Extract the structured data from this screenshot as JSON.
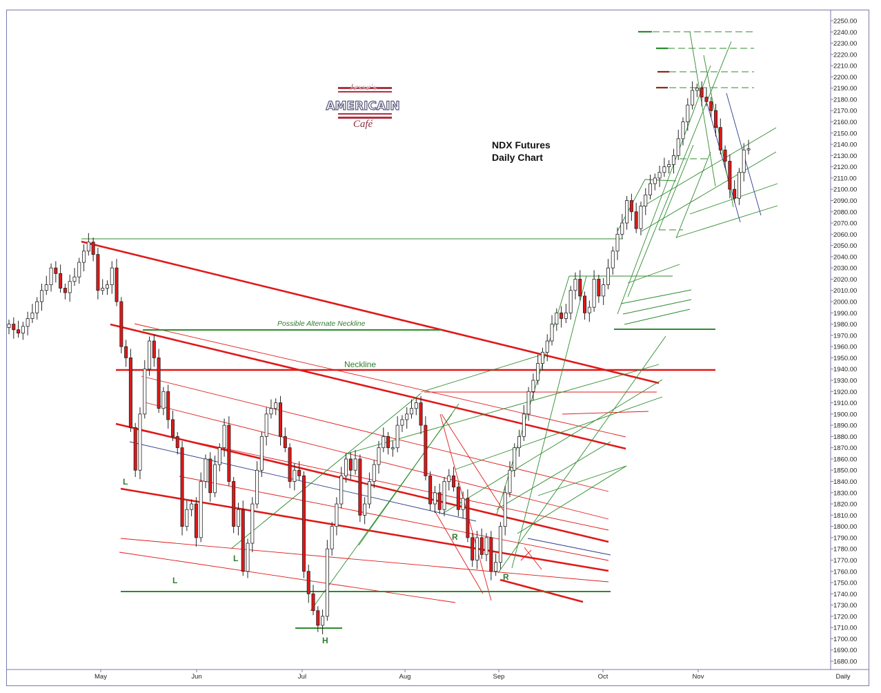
{
  "chart_data": {
    "type": "candlestick",
    "title": "NDX  Futures",
    "subtitle": "Daily Chart",
    "logo": {
      "line1": "Jesse's",
      "line2": "AMERICAIN",
      "line3": "Café"
    },
    "ylim": [
      1675,
      2255
    ],
    "y_ticks": [
      "2250.00",
      "2240.00",
      "2230.00",
      "2220.00",
      "2210.00",
      "2200.00",
      "2190.00",
      "2180.00",
      "2170.00",
      "2160.00",
      "2150.00",
      "2140.00",
      "2130.00",
      "2120.00",
      "2110.00",
      "2100.00",
      "2090.00",
      "2080.00",
      "2070.00",
      "2060.00",
      "2050.00",
      "2040.00",
      "2030.00",
      "2020.00",
      "2010.00",
      "2000.00",
      "1990.00",
      "1980.00",
      "1970.00",
      "1960.00",
      "1950.00",
      "1940.00",
      "1930.00",
      "1920.00",
      "1910.00",
      "1900.00",
      "1890.00",
      "1880.00",
      "1870.00",
      "1860.00",
      "1850.00",
      "1840.00",
      "1830.00",
      "1820.00",
      "1810.00",
      "1800.00",
      "1790.00",
      "1780.00",
      "1770.00",
      "1760.00",
      "1750.00",
      "1740.00",
      "1730.00",
      "1720.00",
      "1710.00",
      "1700.00",
      "1690.00",
      "1680.00"
    ],
    "x_ticks": [
      "May",
      "Jun",
      "Jul",
      "Aug",
      "Sep",
      "Oct",
      "Nov"
    ],
    "period_label": "Daily",
    "annotations": {
      "alt_neckline": "Possible Alternate Neckline",
      "neckline": "Neckline",
      "neckline_level": 1939,
      "alt_neckline_level": 1974,
      "support_level": 1740,
      "labels": [
        "L",
        "L",
        "L",
        "H",
        "R",
        "R"
      ]
    },
    "closes": [
      1980,
      1975,
      1972,
      1978,
      1985,
      1990,
      2000,
      2010,
      2015,
      2030,
      2025,
      2012,
      2008,
      2018,
      2022,
      2035,
      2045,
      2053,
      2042,
      2010,
      2012,
      2015,
      2030,
      2000,
      1960,
      1950,
      1888,
      1850,
      1900,
      1940,
      1965,
      1950,
      1905,
      1920,
      1895,
      1880,
      1870,
      1800,
      1815,
      1820,
      1790,
      1840,
      1860,
      1830,
      1855,
      1870,
      1890,
      1840,
      1800,
      1815,
      1760,
      1785,
      1820,
      1850,
      1880,
      1900,
      1905,
      1910,
      1880,
      1870,
      1840,
      1850,
      1845,
      1760,
      1740,
      1725,
      1712,
      1720,
      1780,
      1800,
      1820,
      1845,
      1860,
      1850,
      1860,
      1810,
      1820,
      1840,
      1855,
      1870,
      1880,
      1870,
      1870,
      1890,
      1895,
      1900,
      1905,
      1910,
      1890,
      1845,
      1820,
      1830,
      1815,
      1840,
      1845,
      1835,
      1815,
      1825,
      1790,
      1770,
      1790,
      1775,
      1790,
      1760,
      1768,
      1800,
      1830,
      1850,
      1870,
      1880,
      1900,
      1920,
      1930,
      1945,
      1955,
      1965,
      1980,
      1990,
      1985,
      1990,
      2010,
      2020,
      2005,
      1990,
      1995,
      2020,
      2005,
      2015,
      2030,
      2045,
      2060,
      2070,
      2090,
      2080,
      2065,
      2085,
      2095,
      2105,
      2110,
      2115,
      2120,
      2122,
      2130,
      2145,
      2160,
      2175,
      2188,
      2190,
      2182,
      2178,
      2170,
      2155,
      2135,
      2125,
      2100,
      2092,
      2115,
      2135,
      2136
    ]
  }
}
